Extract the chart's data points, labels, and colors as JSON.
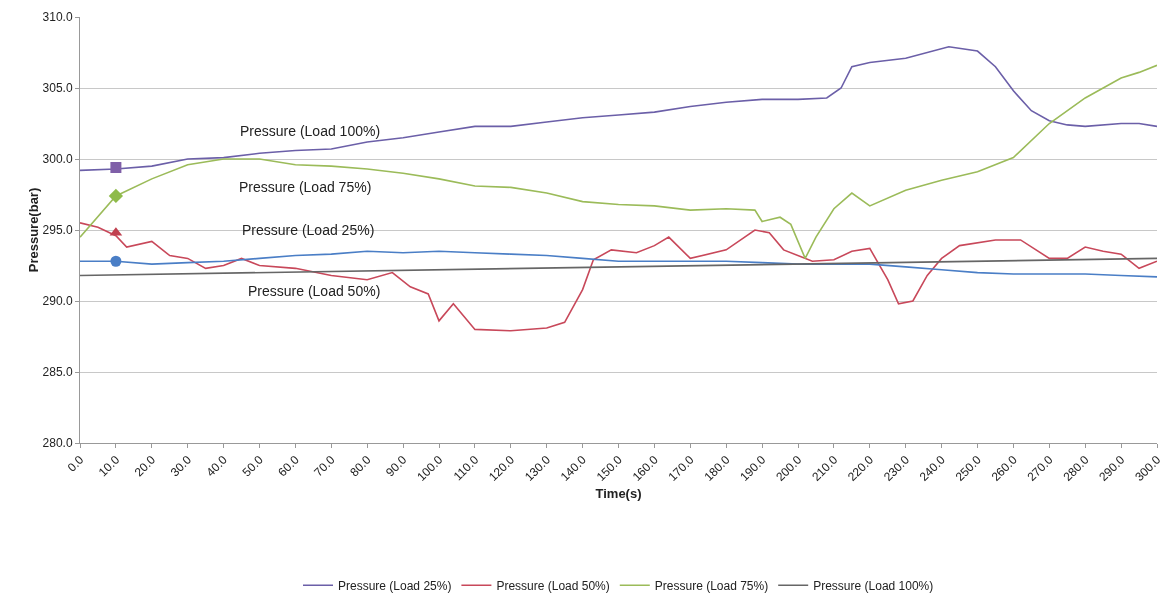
{
  "chart_data": {
    "type": "line",
    "xlabel": "Time(s)",
    "ylabel": "Pressure(bar)",
    "xlim": [
      0,
      300
    ],
    "xticks": [
      {
        "value": 0,
        "label": "0.0"
      },
      {
        "value": 10,
        "label": "10.0"
      },
      {
        "value": 20,
        "label": "20.0"
      },
      {
        "value": 30,
        "label": "30.0"
      },
      {
        "value": 40,
        "label": "40.0"
      },
      {
        "value": 50,
        "label": "50.0"
      },
      {
        "value": 60,
        "label": "60.0"
      },
      {
        "value": 70,
        "label": "70.0"
      },
      {
        "value": 80,
        "label": "80.0"
      },
      {
        "value": 90,
        "label": "90.0"
      },
      {
        "value": 100,
        "label": "100.0"
      },
      {
        "value": 110,
        "label": "110.0"
      },
      {
        "value": 120,
        "label": "120.0"
      },
      {
        "value": 130,
        "label": "130.0"
      },
      {
        "value": 140,
        "label": "140.0"
      },
      {
        "value": 150,
        "label": "150.0"
      },
      {
        "value": 160,
        "label": "160.0"
      },
      {
        "value": 170,
        "label": "170.0"
      },
      {
        "value": 180,
        "label": "180.0"
      },
      {
        "value": 190,
        "label": "190.0"
      },
      {
        "value": 200,
        "label": "200.0"
      },
      {
        "value": 210,
        "label": "210.0"
      },
      {
        "value": 220,
        "label": "220.0"
      },
      {
        "value": 230,
        "label": "230.0"
      },
      {
        "value": 240,
        "label": "240.0"
      },
      {
        "value": 250,
        "label": "250.0"
      },
      {
        "value": 260,
        "label": "260.0"
      },
      {
        "value": 270,
        "label": "270.0"
      },
      {
        "value": 280,
        "label": "280.0"
      },
      {
        "value": 290,
        "label": "290.0"
      },
      {
        "value": 300,
        "label": "300.0"
      }
    ],
    "ylim": [
      280,
      310
    ],
    "yticks": [
      {
        "value": 280,
        "label": "280.0"
      },
      {
        "value": 285,
        "label": "285.0"
      },
      {
        "value": 290,
        "label": "290.0"
      },
      {
        "value": 295,
        "label": "295.0"
      },
      {
        "value": 300,
        "label": "300.0"
      },
      {
        "value": 305,
        "label": "305.0"
      },
      {
        "value": 310,
        "label": "310.0"
      }
    ],
    "grid": "y",
    "legend": "bottom",
    "marker": "none",
    "line_style": "solid",
    "series": [
      {
        "name": "Pressure (Load 25%)",
        "color": "#6b5fa8",
        "x": [
          0,
          10,
          20,
          30,
          40,
          50,
          60,
          70,
          80,
          90,
          100,
          110,
          120,
          130,
          140,
          150,
          160,
          170,
          180,
          190,
          200,
          208,
          212,
          215,
          220,
          230,
          242,
          250,
          255,
          260,
          265,
          270,
          275,
          280,
          290,
          295,
          300
        ],
        "values": [
          299.2,
          299.3,
          299.5,
          300.0,
          300.1,
          300.4,
          300.6,
          300.7,
          301.2,
          301.5,
          301.9,
          302.3,
          302.3,
          302.6,
          302.9,
          303.1,
          303.3,
          303.7,
          304.0,
          304.2,
          304.2,
          304.3,
          305.0,
          306.5,
          306.8,
          307.1,
          307.9,
          307.6,
          306.5,
          304.8,
          303.4,
          302.7,
          302.4,
          302.3,
          302.5,
          302.5,
          302.3
        ]
      },
      {
        "name": "Pressure (Load 50%)",
        "color": "#c8485a",
        "x": [
          0,
          5,
          10,
          13,
          20,
          25,
          30,
          35,
          40,
          45,
          50,
          60,
          70,
          80,
          87,
          92,
          97,
          100,
          104,
          110,
          120,
          130,
          135,
          140,
          143,
          148,
          155,
          160,
          164,
          170,
          180,
          188,
          192,
          196,
          204,
          210,
          215,
          220,
          225,
          228,
          232,
          236,
          240,
          245,
          255,
          262,
          270,
          275,
          280,
          285,
          290,
          295,
          300
        ],
        "values": [
          295.5,
          295.2,
          294.6,
          293.8,
          294.2,
          293.2,
          293.0,
          292.3,
          292.5,
          293.0,
          292.5,
          292.3,
          291.8,
          291.5,
          292.0,
          291.0,
          290.5,
          288.6,
          289.8,
          288.0,
          287.9,
          288.1,
          288.5,
          290.8,
          292.9,
          293.6,
          293.4,
          293.9,
          294.5,
          293.0,
          293.6,
          295.0,
          294.8,
          293.6,
          292.8,
          292.9,
          293.5,
          293.7,
          291.5,
          289.8,
          290.0,
          291.8,
          293.0,
          293.9,
          294.3,
          294.3,
          293.0,
          293.0,
          293.8,
          293.5,
          293.3,
          292.3,
          292.8
        ]
      },
      {
        "name": "Pressure (Load 75%)",
        "color": "#9bbb59",
        "x": [
          0,
          10,
          20,
          30,
          40,
          50,
          60,
          70,
          80,
          90,
          100,
          110,
          120,
          130,
          140,
          150,
          160,
          170,
          180,
          188,
          190,
          195,
          198,
          202,
          205,
          210,
          215,
          220,
          230,
          240,
          250,
          260,
          270,
          280,
          290,
          295,
          300
        ],
        "values": [
          294.5,
          297.4,
          298.6,
          299.6,
          300.0,
          300.0,
          299.6,
          299.5,
          299.3,
          299.0,
          298.6,
          298.1,
          298.0,
          297.6,
          297.0,
          296.8,
          296.7,
          296.4,
          296.5,
          296.4,
          295.6,
          295.9,
          295.4,
          293.0,
          294.5,
          296.5,
          297.6,
          296.7,
          297.8,
          298.5,
          299.1,
          300.1,
          302.5,
          304.3,
          305.7,
          306.1,
          306.6
        ]
      },
      {
        "color": "#4a7ec6",
        "x": [
          0,
          10,
          20,
          30,
          40,
          50,
          60,
          70,
          80,
          90,
          100,
          110,
          120,
          130,
          140,
          150,
          160,
          170,
          180,
          190,
          200,
          210,
          220,
          230,
          240,
          250,
          260,
          270,
          280,
          290,
          300
        ],
        "values": [
          292.8,
          292.8,
          292.6,
          292.7,
          292.8,
          293.0,
          293.2,
          293.3,
          293.5,
          293.4,
          293.5,
          293.4,
          293.3,
          293.2,
          293.0,
          292.8,
          292.8,
          292.8,
          292.8,
          292.7,
          292.6,
          292.6,
          292.6,
          292.4,
          292.2,
          292.0,
          291.9,
          291.9,
          291.9,
          291.8,
          291.7
        ]
      },
      {
        "name": "Pressure (Load 100%)",
        "color": "#666666",
        "x": [
          0,
          300
        ],
        "values": [
          291.8,
          293.0
        ]
      },
      {
        "type": "scatter",
        "marker": "square",
        "color": "#7f5fa8",
        "x": [
          10
        ],
        "values": [
          299.4
        ]
      },
      {
        "type": "scatter",
        "marker": "diamond",
        "color": "#8fbb4a",
        "x": [
          10
        ],
        "values": [
          297.4
        ]
      },
      {
        "type": "scatter",
        "marker": "triangle",
        "color": "#c0404f",
        "x": [
          10
        ],
        "values": [
          294.8
        ]
      },
      {
        "type": "scatter",
        "marker": "circle",
        "color": "#4a7ec6",
        "x": [
          10
        ],
        "values": [
          292.8
        ]
      }
    ],
    "annotations": [
      "Pressure (Load 100%)",
      "Pressure (Load 75%)",
      "Pressure (Load 25%)",
      "Pressure (Load 50%)"
    ]
  }
}
